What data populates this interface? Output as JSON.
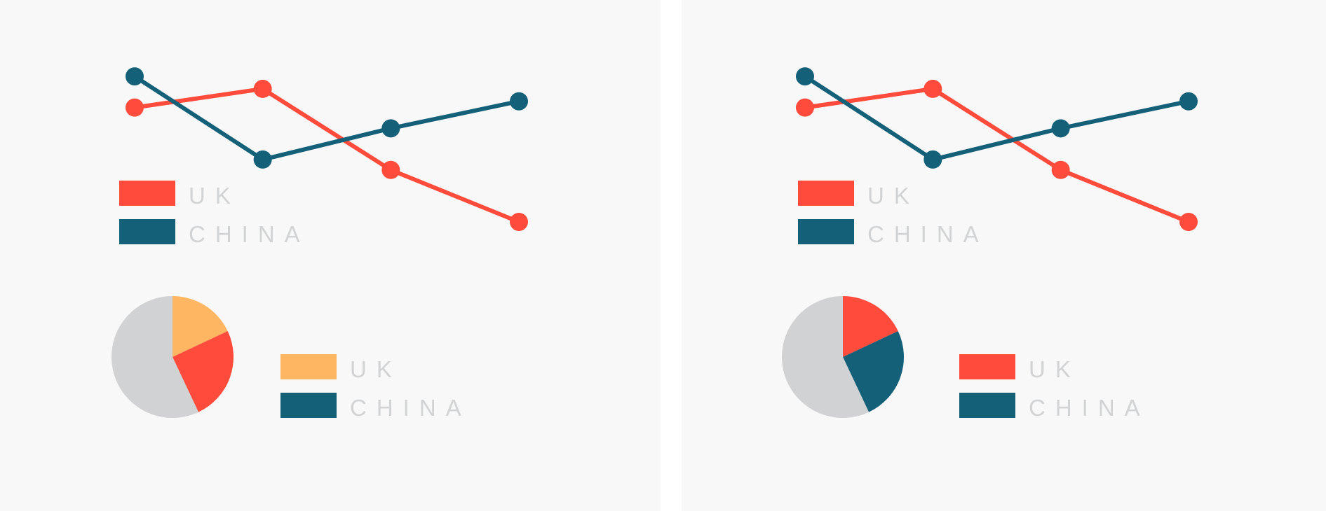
{
  "colors": {
    "uk": "#ff4b3b",
    "china": "#156079",
    "orange": "#ffb662",
    "grey": "#d1d2d3",
    "legend_text": "#d2d3d4"
  },
  "panels": [
    {
      "line_legend": [
        {
          "label": "UK",
          "color": "#ff4b3b"
        },
        {
          "label": "CHINA",
          "color": "#156079"
        }
      ],
      "pie_legend": [
        {
          "label": "UK",
          "color": "#ffb662"
        },
        {
          "label": "CHINA",
          "color": "#156079"
        }
      ]
    },
    {
      "line_legend": [
        {
          "label": "UK",
          "color": "#ff4b3b"
        },
        {
          "label": "CHINA",
          "color": "#156079"
        }
      ],
      "pie_legend": [
        {
          "label": "UK",
          "color": "#ff4b3b"
        },
        {
          "label": "CHINA",
          "color": "#156079"
        }
      ]
    }
  ],
  "chart_data": [
    {
      "type": "line",
      "x": [
        1,
        2,
        3,
        4
      ],
      "ylim": [
        0,
        10
      ],
      "grid": false,
      "legend": "bottom-left",
      "series": [
        {
          "name": "UK",
          "values": [
            5.5,
            6.4,
            2.5,
            0
          ],
          "color": "#ff4b3b"
        },
        {
          "name": "CHINA",
          "values": [
            7.0,
            3.0,
            4.5,
            5.8
          ],
          "color": "#156079"
        }
      ]
    },
    {
      "type": "pie",
      "legend": "right",
      "slices": [
        {
          "label": "UK",
          "value": 18,
          "color": "#ffb662"
        },
        {
          "label": "",
          "value": 25,
          "color": "#ff4b3b"
        },
        {
          "label": "",
          "value": 57,
          "color": "#d1d2d3"
        }
      ]
    },
    {
      "type": "line",
      "x": [
        1,
        2,
        3,
        4
      ],
      "ylim": [
        0,
        10
      ],
      "grid": false,
      "legend": "bottom-left",
      "series": [
        {
          "name": "UK",
          "values": [
            5.5,
            6.4,
            2.5,
            0
          ],
          "color": "#ff4b3b"
        },
        {
          "name": "CHINA",
          "values": [
            7.0,
            3.0,
            4.5,
            5.8
          ],
          "color": "#156079"
        }
      ]
    },
    {
      "type": "pie",
      "legend": "right",
      "slices": [
        {
          "label": "UK",
          "value": 18,
          "color": "#ff4b3b"
        },
        {
          "label": "CHINA",
          "value": 25,
          "color": "#156079"
        },
        {
          "label": "",
          "value": 57,
          "color": "#d1d2d3"
        }
      ]
    }
  ]
}
